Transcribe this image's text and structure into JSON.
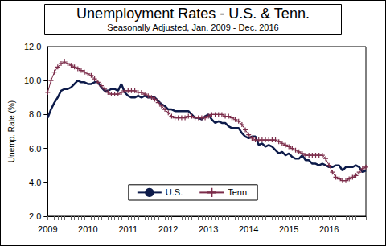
{
  "chart_data": {
    "type": "line",
    "title": "Unemployment Rates - U.S. & Tenn.",
    "subtitle": "Seasonally Adjusted, Jan. 2009 - Dec. 2016",
    "y_label": "Unemp. Rate (%)",
    "categories": [
      "2009",
      null,
      null,
      null,
      null,
      null,
      null,
      null,
      null,
      null,
      null,
      null,
      "2010",
      null,
      null,
      null,
      null,
      null,
      null,
      null,
      null,
      null,
      null,
      null,
      "2011",
      null,
      null,
      null,
      null,
      null,
      null,
      null,
      null,
      null,
      null,
      null,
      "2012",
      null,
      null,
      null,
      null,
      null,
      null,
      null,
      null,
      null,
      null,
      null,
      "2013",
      null,
      null,
      null,
      null,
      null,
      null,
      null,
      null,
      null,
      null,
      null,
      "2014",
      null,
      null,
      null,
      null,
      null,
      null,
      null,
      null,
      null,
      null,
      null,
      "2015",
      null,
      null,
      null,
      null,
      null,
      null,
      null,
      null,
      null,
      null,
      null,
      "2016",
      null,
      null,
      null,
      null,
      null,
      null,
      null,
      null,
      null,
      null,
      null
    ],
    "series": [
      {
        "name": "U.S.",
        "color": "#0d1b4a",
        "marker": "none",
        "line_style": "solid",
        "values": [
          7.8,
          8.3,
          8.7,
          9.0,
          9.4,
          9.5,
          9.5,
          9.6,
          9.8,
          10.0,
          9.9,
          9.9,
          9.8,
          9.8,
          9.9,
          9.9,
          9.6,
          9.4,
          9.4,
          9.5,
          9.5,
          9.4,
          9.8,
          9.3,
          9.1,
          9.0,
          9.0,
          9.1,
          9.0,
          9.1,
          9.0,
          9.0,
          9.0,
          8.8,
          8.6,
          8.5,
          8.3,
          8.3,
          8.2,
          8.2,
          8.2,
          8.2,
          8.2,
          8.0,
          7.8,
          7.8,
          7.7,
          7.9,
          8.0,
          7.7,
          7.5,
          7.6,
          7.5,
          7.5,
          7.3,
          7.2,
          7.2,
          7.2,
          6.9,
          6.7,
          6.6,
          6.7,
          6.7,
          6.2,
          6.3,
          6.1,
          6.2,
          6.1,
          5.9,
          5.7,
          5.8,
          5.6,
          5.7,
          5.5,
          5.4,
          5.4,
          5.6,
          5.3,
          5.3,
          5.1,
          5.1,
          5.0,
          5.1,
          5.0,
          4.9,
          4.9,
          5.0,
          5.0,
          4.7,
          4.9,
          4.9,
          4.9,
          5.0,
          4.9,
          4.6,
          4.7
        ]
      },
      {
        "name": "Tenn.",
        "color": "#7b2c4a",
        "marker": "plus",
        "line_style": "solid",
        "values": [
          9.3,
          10.0,
          10.5,
          10.8,
          11.0,
          11.1,
          11.0,
          10.9,
          10.8,
          10.7,
          10.6,
          10.5,
          10.4,
          10.3,
          10.1,
          9.9,
          9.7,
          9.5,
          9.3,
          9.2,
          9.2,
          9.2,
          9.3,
          9.4,
          9.4,
          9.4,
          9.4,
          9.3,
          9.3,
          9.2,
          9.1,
          9.0,
          8.9,
          8.7,
          8.5,
          8.3,
          8.1,
          7.9,
          7.8,
          7.8,
          7.8,
          7.8,
          7.9,
          7.9,
          7.8,
          7.8,
          7.8,
          7.8,
          7.9,
          8.0,
          8.0,
          8.0,
          8.0,
          7.9,
          7.9,
          7.8,
          7.7,
          7.6,
          7.4,
          7.1,
          6.8,
          6.6,
          6.5,
          6.5,
          6.5,
          6.5,
          6.5,
          6.5,
          6.5,
          6.4,
          6.3,
          6.2,
          6.1,
          6.0,
          5.9,
          5.8,
          5.7,
          5.6,
          5.6,
          5.6,
          5.6,
          5.6,
          5.6,
          5.4,
          5.0,
          4.6,
          4.3,
          4.2,
          4.1,
          4.1,
          4.2,
          4.3,
          4.4,
          4.6,
          4.8,
          4.9
        ]
      }
    ],
    "ylim": [
      2,
      12
    ],
    "yticks": [
      {
        "value": 2,
        "label": "2.0"
      },
      {
        "value": 4,
        "label": "4.0"
      },
      {
        "value": 6,
        "label": "6.0"
      },
      {
        "value": 8,
        "label": "8.0"
      },
      {
        "value": 10,
        "label": "10.0"
      },
      {
        "value": 12,
        "label": "12.0"
      }
    ],
    "grid": false,
    "legend": "lower center"
  }
}
